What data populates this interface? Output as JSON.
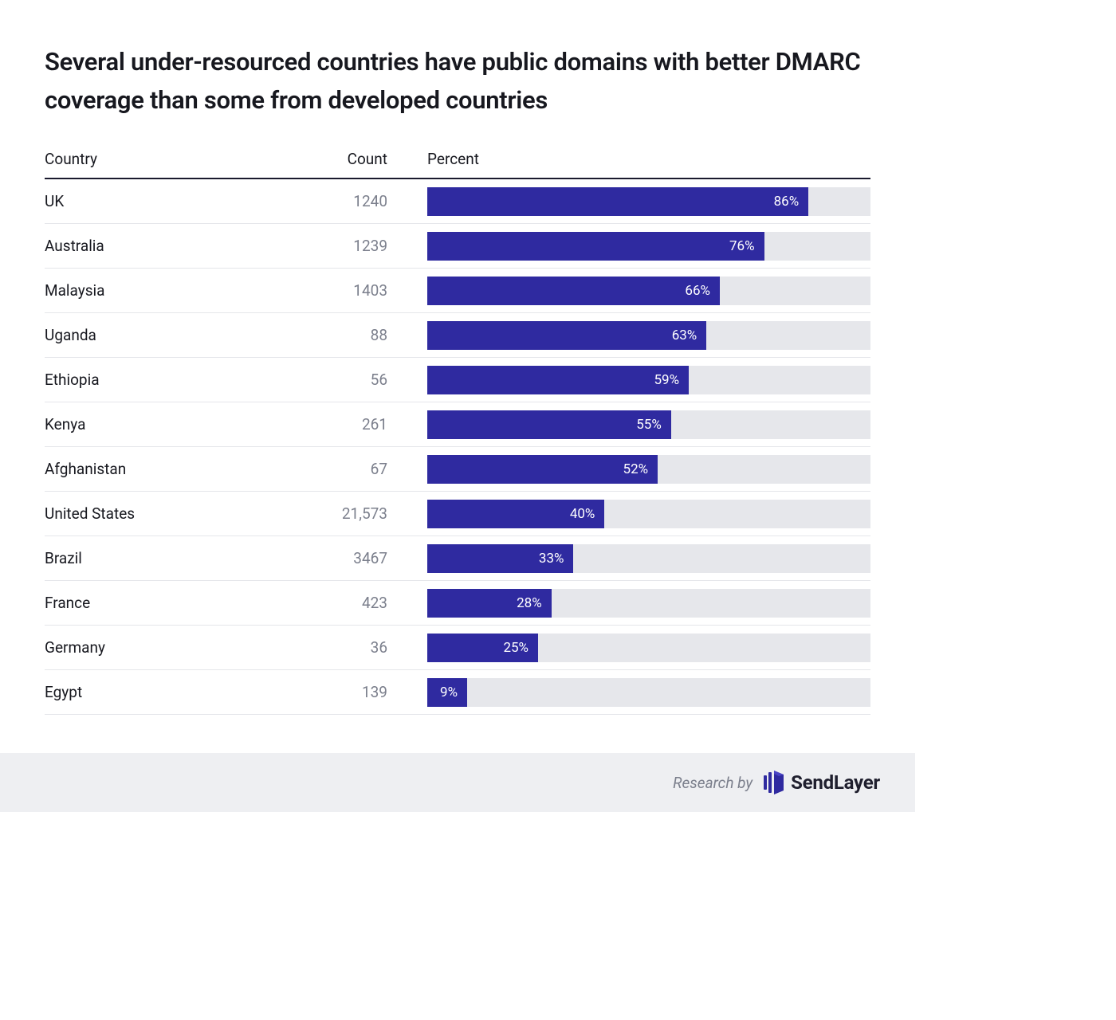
{
  "title": "Several under-resourced countries have public domains with better DMARC coverage than some from developed countries",
  "columns": {
    "country": "Country",
    "count": "Count",
    "percent": "Percent"
  },
  "bar": {
    "fill_color": "#2f2aa0",
    "track_color": "#e6e7eb",
    "label_color": "#ffffff",
    "max_percent": 100
  },
  "text_colors": {
    "title": "#17181f",
    "country": "#17181f",
    "count": "#7b7f8c",
    "header": "#17181f"
  },
  "rows": [
    {
      "country": "UK",
      "count": "1240",
      "percent": 86,
      "percent_label": "86%"
    },
    {
      "country": "Australia",
      "count": "1239",
      "percent": 76,
      "percent_label": "76%"
    },
    {
      "country": "Malaysia",
      "count": "1403",
      "percent": 66,
      "percent_label": "66%"
    },
    {
      "country": "Uganda",
      "count": "88",
      "percent": 63,
      "percent_label": "63%"
    },
    {
      "country": "Ethiopia",
      "count": "56",
      "percent": 59,
      "percent_label": "59%"
    },
    {
      "country": "Kenya",
      "count": "261",
      "percent": 55,
      "percent_label": "55%"
    },
    {
      "country": "Afghanistan",
      "count": "67",
      "percent": 52,
      "percent_label": "52%"
    },
    {
      "country": "United States",
      "count": "21,573",
      "percent": 40,
      "percent_label": "40%"
    },
    {
      "country": "Brazil",
      "count": "3467",
      "percent": 33,
      "percent_label": "33%"
    },
    {
      "country": "France",
      "count": "423",
      "percent": 28,
      "percent_label": "28%"
    },
    {
      "country": "Germany",
      "count": "36",
      "percent": 25,
      "percent_label": "25%"
    },
    {
      "country": "Egypt",
      "count": "139",
      "percent": 9,
      "percent_label": "9%"
    }
  ],
  "footer": {
    "research_by": "Research by",
    "brand": "SendLayer",
    "brand_color": "#2f2aa0"
  }
}
